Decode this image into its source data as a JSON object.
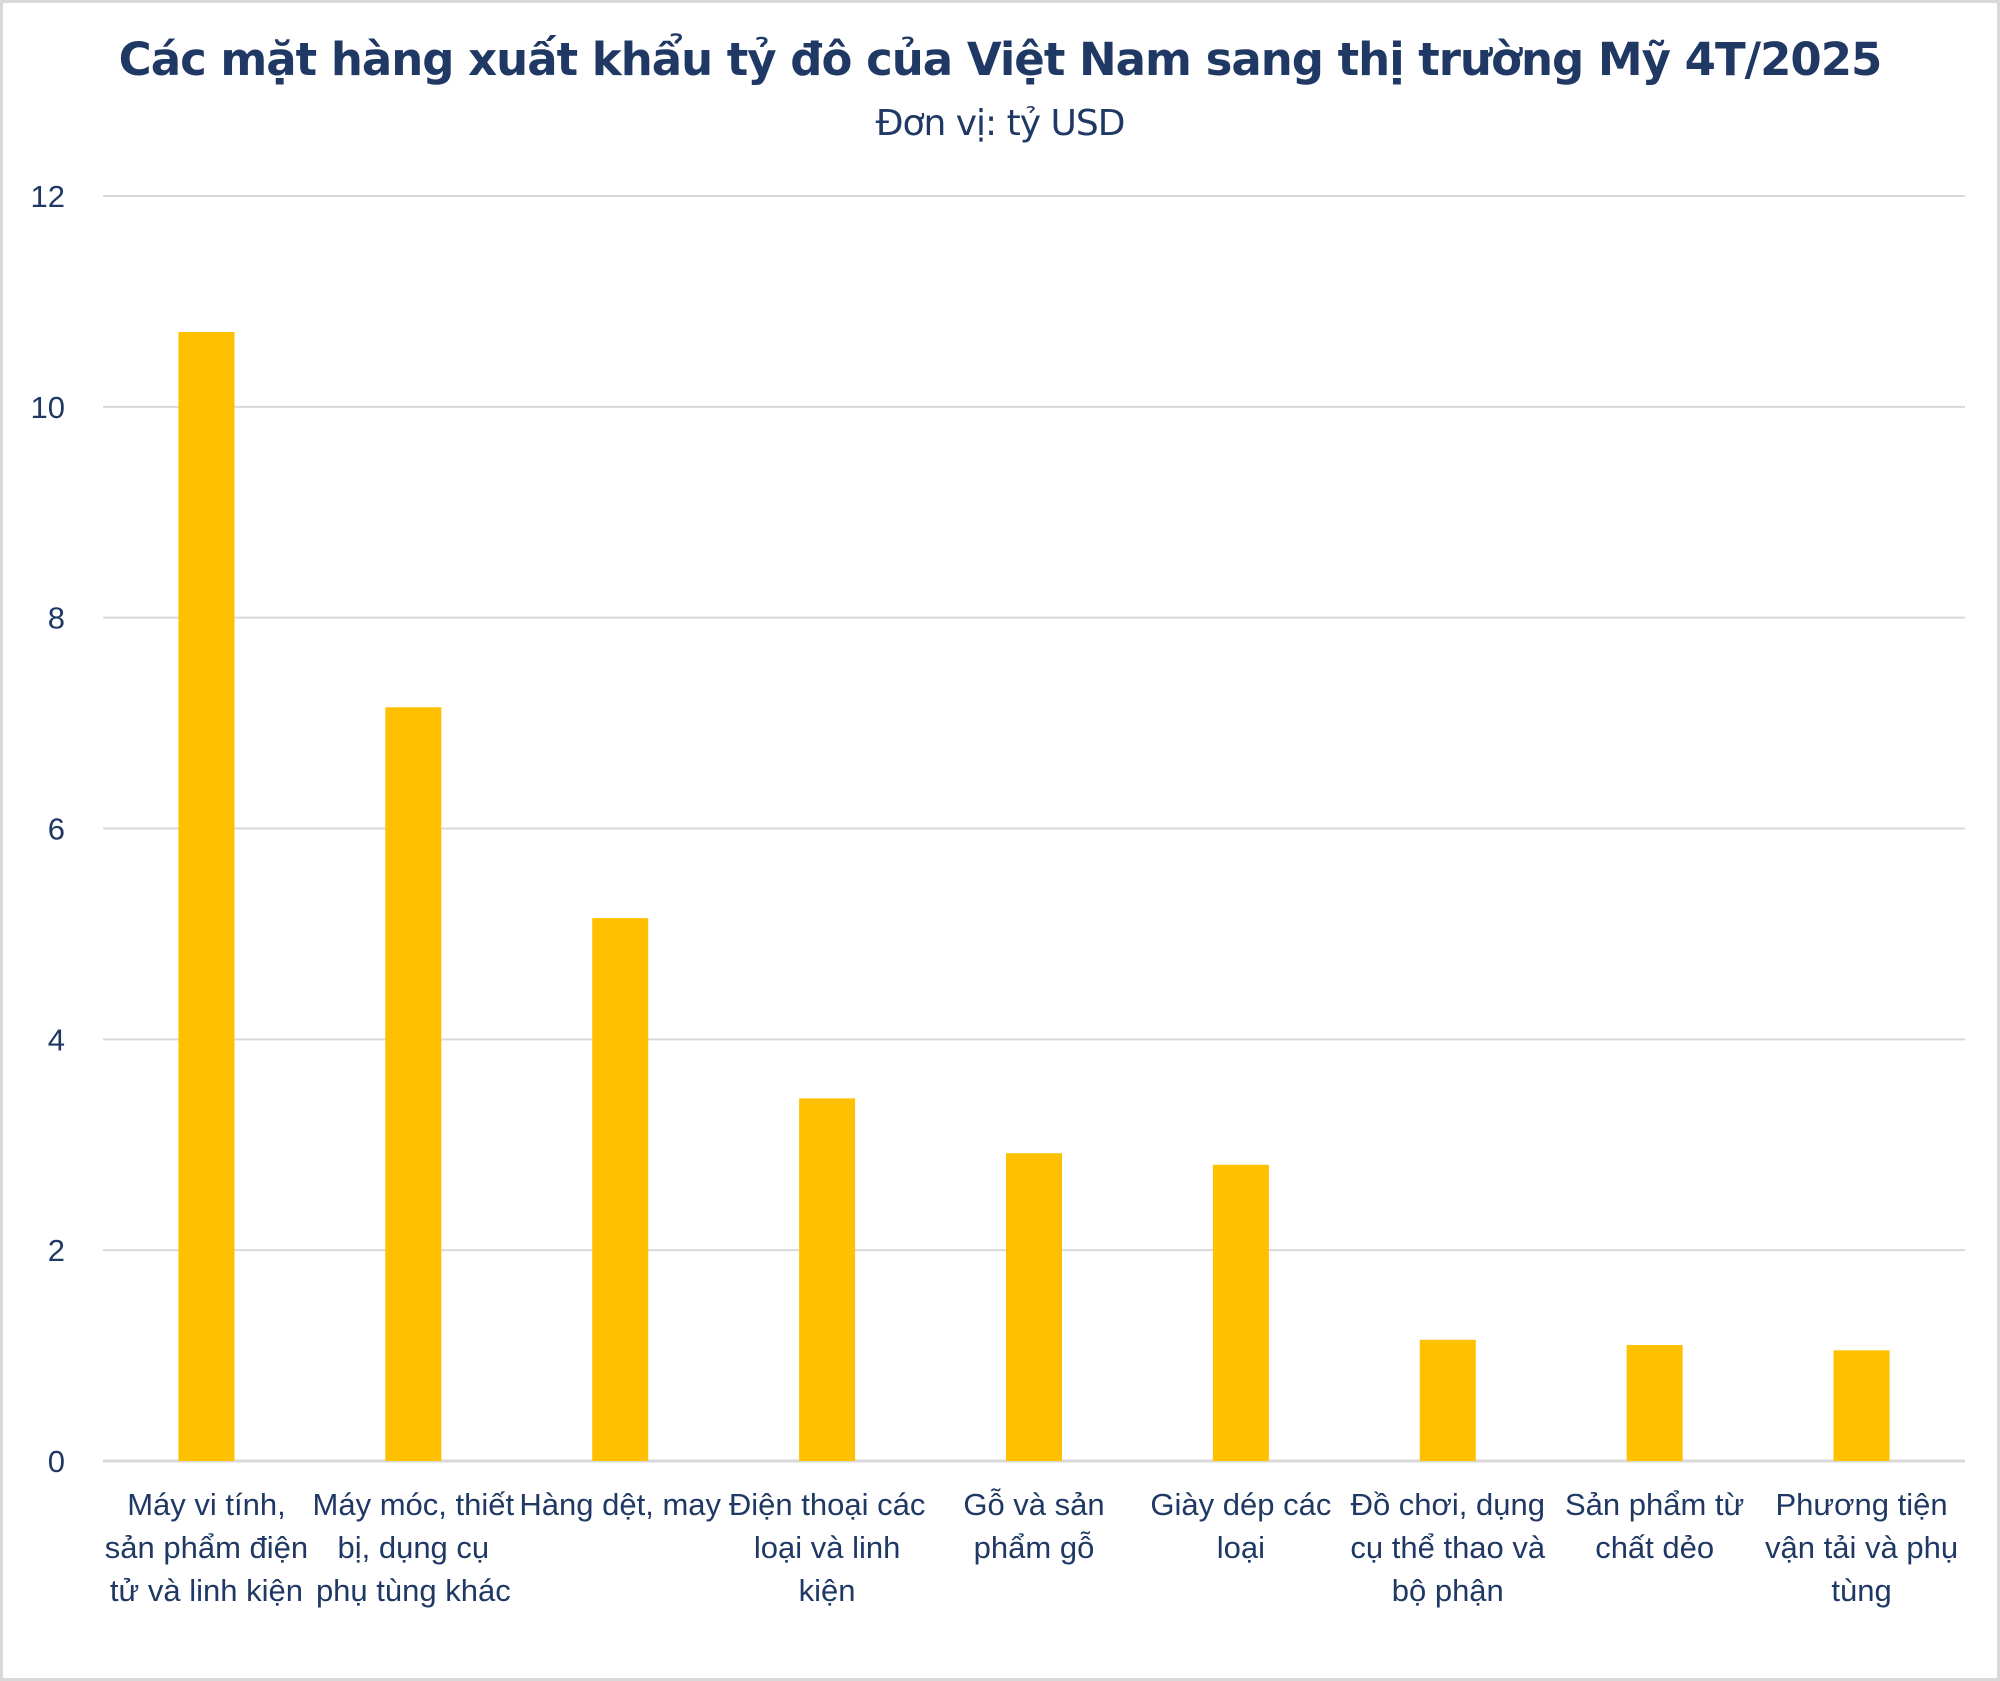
{
  "chart_data": {
    "type": "bar",
    "title": "Các mặt hàng xuất khẩu tỷ đô của Việt Nam sang thị trường Mỹ 4T/2025",
    "subtitle": "Đơn vị: tỷ USD",
    "xlabel": "",
    "ylabel": "",
    "ylim": [
      0,
      12
    ],
    "yticks": [
      0,
      2,
      4,
      6,
      8,
      10,
      12
    ],
    "grid": true,
    "legend": "none",
    "bar_color": "#ffc000",
    "categories": [
      "Máy vi tính, sản phẩm điện tử và linh kiện",
      "Máy móc, thiết bị, dụng cụ phụ tùng khác",
      "Hàng dệt, may",
      "Điện thoại các loại và linh kiện",
      "Gỗ và sản phẩm gỗ",
      "Giày dép các loại",
      "Đồ chơi, dụng cụ thể thao và bộ phận",
      "Sản phẩm từ chất dẻo",
      "Phương tiện vận tải và phụ tùng"
    ],
    "values": [
      10.71,
      7.15,
      5.15,
      3.44,
      2.92,
      2.81,
      1.15,
      1.1,
      1.05
    ]
  }
}
